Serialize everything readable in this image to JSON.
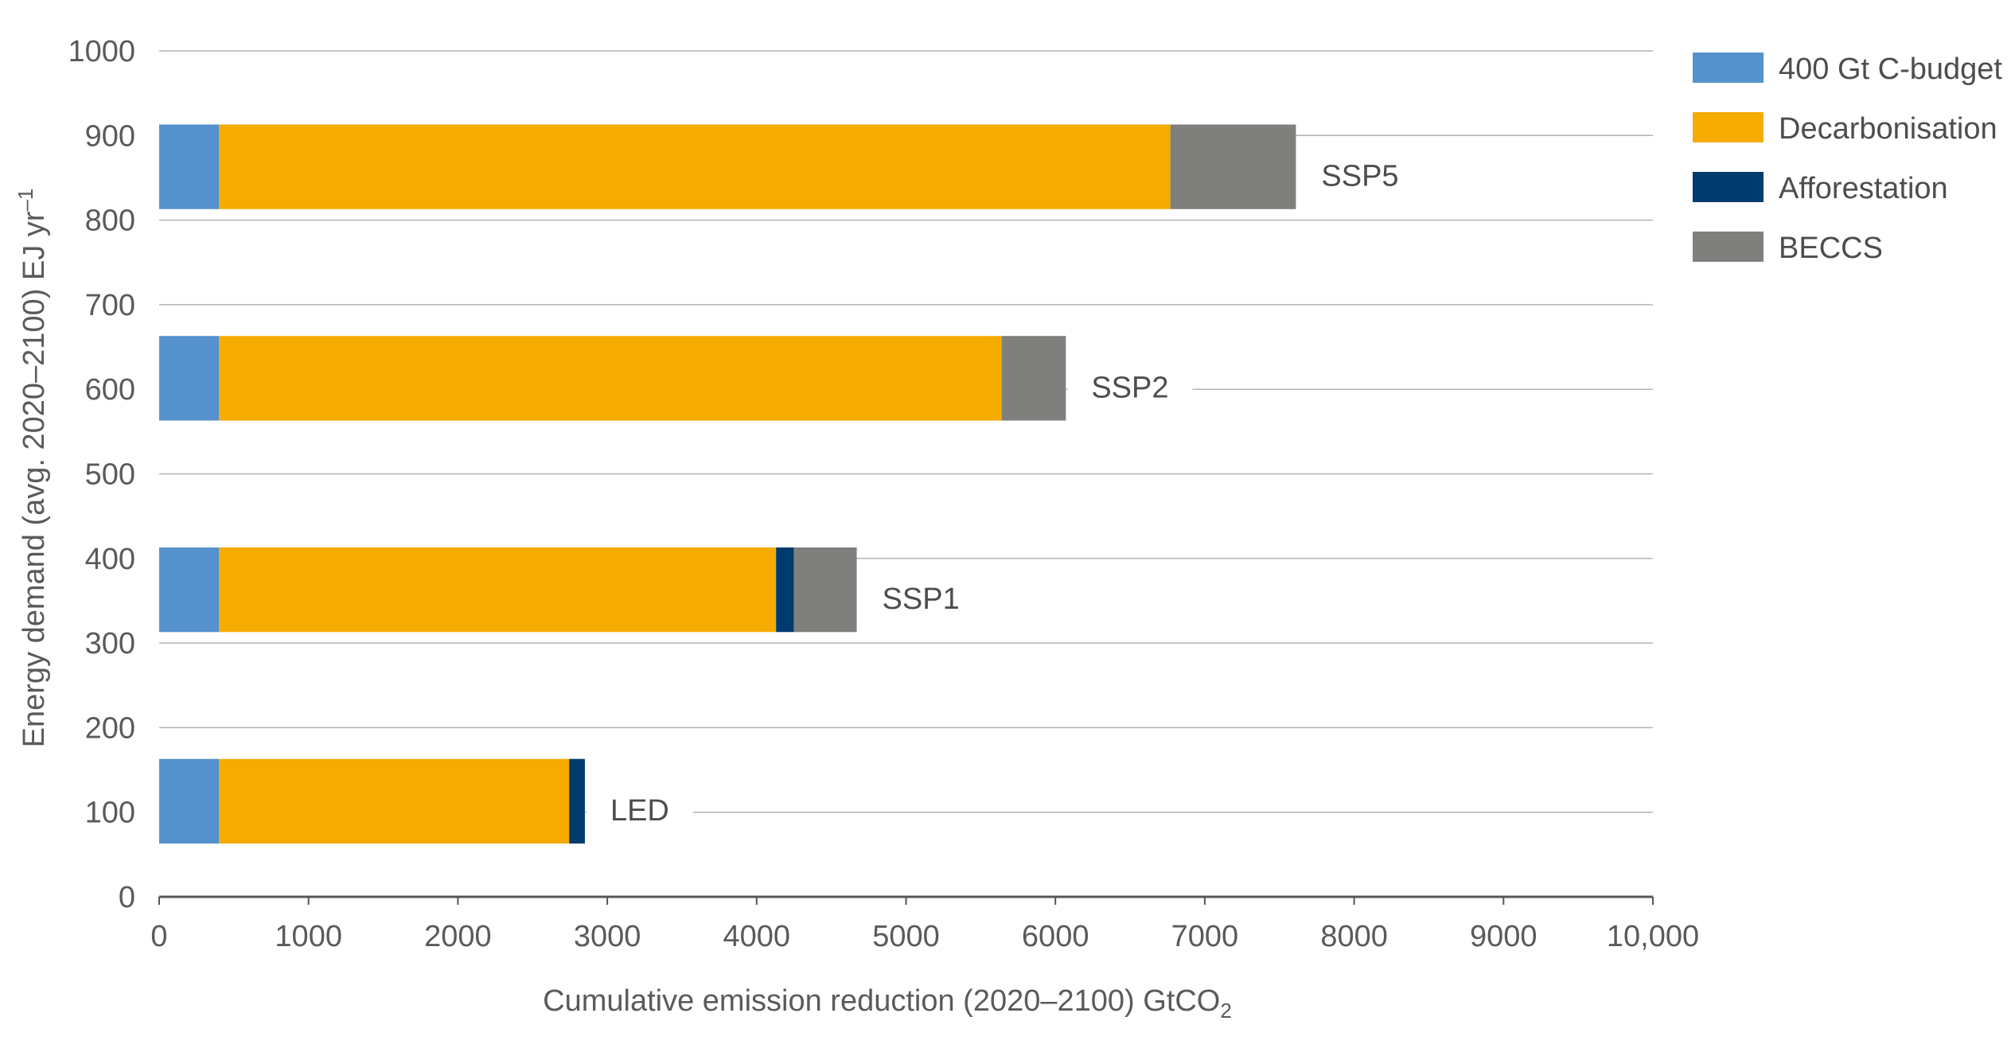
{
  "chart_data": {
    "type": "bar",
    "orientation": "horizontal",
    "stacked": true,
    "xlabel": "Cumulative emission reduction (2020–2100) GtCO",
    "xlabel_subscript": "2",
    "ylabel": "Energy demand (avg. 2020–2100) EJ yr",
    "ylabel_superscript": "–1",
    "xlim": [
      0,
      10000
    ],
    "ylim": [
      0,
      1000
    ],
    "x_ticks": [
      "0",
      "1000",
      "2000",
      "3000",
      "4000",
      "5000",
      "6000",
      "7000",
      "8000",
      "9000",
      "10,000"
    ],
    "y_ticks": [
      "0",
      "100",
      "200",
      "300",
      "400",
      "500",
      "600",
      "700",
      "800",
      "900",
      "1000"
    ],
    "grid": "horizontal",
    "legend_position": "right",
    "categories": [
      "LED",
      "SSP1",
      "SSP2",
      "SSP5"
    ],
    "bar_positions": [
      113,
      363,
      613,
      863
    ],
    "bar_thickness": 100,
    "series": [
      {
        "name": "400 Gt C-budget",
        "color": "#5591cc",
        "values": [
          400,
          400,
          400,
          400
        ]
      },
      {
        "name": "Decarbonisation",
        "color": "#f5ab00",
        "values": [
          2345,
          3730,
          5240,
          6370
        ]
      },
      {
        "name": "Afforestation",
        "color": "#003b6e",
        "values": [
          105,
          120,
          0,
          0
        ]
      },
      {
        "name": "BECCS",
        "color": "#7f7f7d",
        "values": [
          0,
          420,
          430,
          840
        ]
      }
    ]
  }
}
